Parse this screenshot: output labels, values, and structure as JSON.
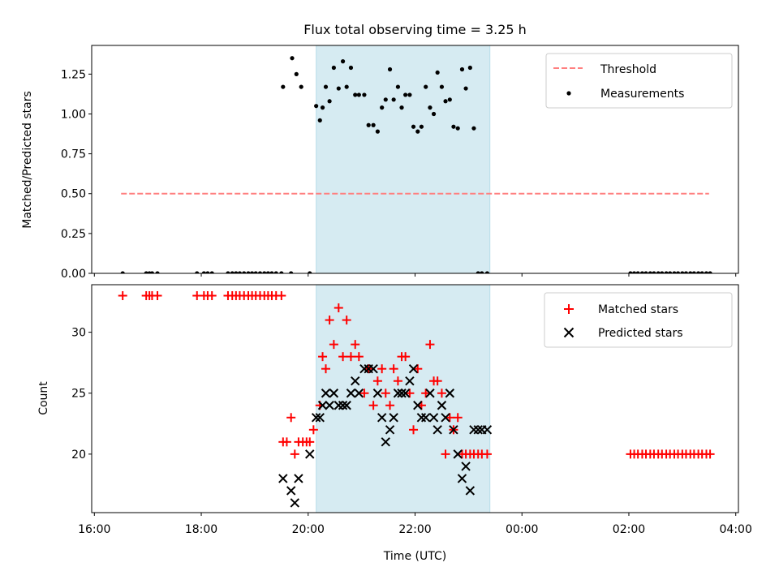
{
  "chart_data": [
    {
      "type": "scatter",
      "title": "Flux total observing time = 3.25 h",
      "xlabel": "",
      "ylabel": "Matched/Predicted stars",
      "xlim": [
        15.95,
        28.05
      ],
      "ylim": [
        0,
        1.43
      ],
      "yticks": [
        0.0,
        0.25,
        0.5,
        0.75,
        1.0,
        1.25
      ],
      "ytick_labels": [
        "0.00",
        "0.25",
        "0.50",
        "0.75",
        "1.00",
        "1.25"
      ],
      "shaded_span": [
        20.15,
        23.4
      ],
      "legend_position": "upper right",
      "series": [
        {
          "name": "Threshold",
          "kind": "dashed-line",
          "color": "#ff7f7f",
          "x": [
            16.5,
            27.5
          ],
          "y": [
            0.5,
            0.5
          ]
        },
        {
          "name": "Measurements",
          "kind": "dot",
          "color": "#000000",
          "x": [
            16.53,
            16.97,
            17.03,
            17.08,
            17.18,
            17.92,
            18.05,
            18.12,
            18.2,
            18.5,
            18.58,
            18.65,
            18.72,
            18.8,
            18.88,
            18.95,
            19.02,
            19.1,
            19.18,
            19.25,
            19.32,
            19.4,
            19.5,
            19.53,
            19.68,
            19.7,
            19.78,
            19.87,
            20.03,
            20.15,
            20.22,
            20.27,
            20.33,
            20.4,
            20.48,
            20.57,
            20.65,
            20.72,
            20.8,
            20.88,
            20.95,
            21.05,
            21.13,
            21.22,
            21.3,
            21.38,
            21.45,
            21.53,
            21.6,
            21.68,
            21.75,
            21.82,
            21.9,
            21.97,
            22.05,
            22.12,
            22.2,
            22.28,
            22.35,
            22.42,
            22.5,
            22.57,
            22.65,
            22.72,
            22.8,
            22.88,
            22.95,
            23.03,
            23.1,
            23.18,
            23.25,
            23.35,
            26.03,
            26.1,
            26.17,
            26.25,
            26.32,
            26.4,
            26.47,
            26.55,
            26.62,
            26.7,
            26.77,
            26.85,
            26.92,
            27.0,
            27.07,
            27.15,
            27.22,
            27.3,
            27.37,
            27.45,
            27.52
          ],
          "y": [
            0,
            0,
            0,
            0,
            0,
            0,
            0,
            0,
            0,
            0,
            0,
            0,
            0,
            0,
            0,
            0,
            0,
            0,
            0,
            0,
            0,
            0,
            0,
            1.17,
            0,
            1.35,
            1.25,
            1.17,
            0,
            1.05,
            0.96,
            1.04,
            1.17,
            1.08,
            1.29,
            1.16,
            1.33,
            1.17,
            1.29,
            1.12,
            1.12,
            1.12,
            0.93,
            0.93,
            0.89,
            1.04,
            1.09,
            1.28,
            1.09,
            1.17,
            1.04,
            1.12,
            1.12,
            0.92,
            0.89,
            0.92,
            1.17,
            1.04,
            1.0,
            1.26,
            1.17,
            1.08,
            1.09,
            0.92,
            0.91,
            1.28,
            1.16,
            1.29,
            0.91,
            0,
            0,
            0,
            0,
            0,
            0,
            0,
            0,
            0,
            0,
            0,
            0,
            0,
            0,
            0,
            0,
            0,
            0,
            0,
            0,
            0,
            0,
            0,
            0
          ]
        }
      ]
    },
    {
      "type": "scatter",
      "title": "",
      "xlabel": "Time (UTC)",
      "ylabel": "Count",
      "xlim": [
        15.95,
        28.05
      ],
      "ylim": [
        15.2,
        33.9
      ],
      "xticks": [
        16,
        18,
        20,
        22,
        24,
        26,
        28
      ],
      "xtick_labels": [
        "16:00",
        "18:00",
        "20:00",
        "22:00",
        "00:00",
        "02:00",
        "04:00"
      ],
      "yticks": [
        20,
        25,
        30
      ],
      "ytick_labels": [
        "20",
        "25",
        "30"
      ],
      "shaded_span": [
        20.15,
        23.4
      ],
      "legend_position": "upper right",
      "series": [
        {
          "name": "Matched stars",
          "kind": "plus",
          "color": "#ff0000",
          "x": [
            16.53,
            16.97,
            17.03,
            17.08,
            17.18,
            17.92,
            18.05,
            18.12,
            18.2,
            18.5,
            18.58,
            18.65,
            18.72,
            18.8,
            18.88,
            18.95,
            19.02,
            19.1,
            19.18,
            19.25,
            19.32,
            19.4,
            19.5,
            19.53,
            19.6,
            19.68,
            19.75,
            19.82,
            19.9,
            19.97,
            20.03,
            20.1,
            20.22,
            20.27,
            20.33,
            20.4,
            20.48,
            20.57,
            20.65,
            20.72,
            20.8,
            20.88,
            20.95,
            21.05,
            21.13,
            21.22,
            21.3,
            21.38,
            21.45,
            21.53,
            21.6,
            21.68,
            21.75,
            21.82,
            21.9,
            21.97,
            22.05,
            22.12,
            22.2,
            22.28,
            22.35,
            22.42,
            22.5,
            22.57,
            22.65,
            22.72,
            22.8,
            22.88,
            22.95,
            23.03,
            23.1,
            23.18,
            23.25,
            23.35,
            26.03,
            26.1,
            26.17,
            26.25,
            26.32,
            26.4,
            26.47,
            26.55,
            26.62,
            26.7,
            26.77,
            26.85,
            26.92,
            27.0,
            27.07,
            27.15,
            27.22,
            27.3,
            27.37,
            27.45,
            27.52
          ],
          "y": [
            33,
            33,
            33,
            33,
            33,
            33,
            33,
            33,
            33,
            33,
            33,
            33,
            33,
            33,
            33,
            33,
            33,
            33,
            33,
            33,
            33,
            33,
            33,
            21,
            21,
            23,
            20,
            21,
            21,
            21,
            21,
            22,
            24,
            28,
            27,
            31,
            29,
            32,
            28,
            31,
            28,
            29,
            28,
            25,
            27,
            24,
            26,
            27,
            25,
            24,
            27,
            26,
            28,
            28,
            25,
            22,
            27,
            24,
            25,
            29,
            26,
            26,
            25,
            20,
            23,
            22,
            23,
            20,
            20,
            20,
            20,
            20,
            20,
            20,
            20,
            20,
            20,
            20,
            20,
            20,
            20,
            20,
            20,
            20,
            20,
            20,
            20,
            20,
            20,
            20,
            20,
            20,
            20,
            20,
            20
          ]
        },
        {
          "name": "Predicted stars",
          "kind": "x",
          "color": "#000000",
          "x": [
            19.53,
            19.68,
            19.75,
            19.82,
            20.03,
            20.15,
            20.22,
            20.27,
            20.33,
            20.4,
            20.48,
            20.57,
            20.65,
            20.72,
            20.8,
            20.88,
            20.95,
            21.05,
            21.13,
            21.22,
            21.3,
            21.38,
            21.45,
            21.53,
            21.6,
            21.68,
            21.75,
            21.82,
            21.9,
            21.97,
            22.05,
            22.12,
            22.2,
            22.28,
            22.35,
            22.42,
            22.5,
            22.57,
            22.65,
            22.72,
            22.8,
            22.88,
            22.95,
            23.03,
            23.1,
            23.18,
            23.25,
            23.35
          ],
          "y": [
            18,
            17,
            16,
            18,
            20,
            23,
            23,
            24,
            25,
            24,
            25,
            24,
            24,
            24,
            25,
            26,
            25,
            27,
            27,
            27,
            25,
            23,
            21,
            22,
            23,
            25,
            25,
            25,
            26,
            27,
            24,
            23,
            23,
            25,
            23,
            22,
            24,
            23,
            25,
            22,
            20,
            18,
            19,
            17,
            22,
            22,
            22,
            22
          ]
        }
      ]
    }
  ]
}
